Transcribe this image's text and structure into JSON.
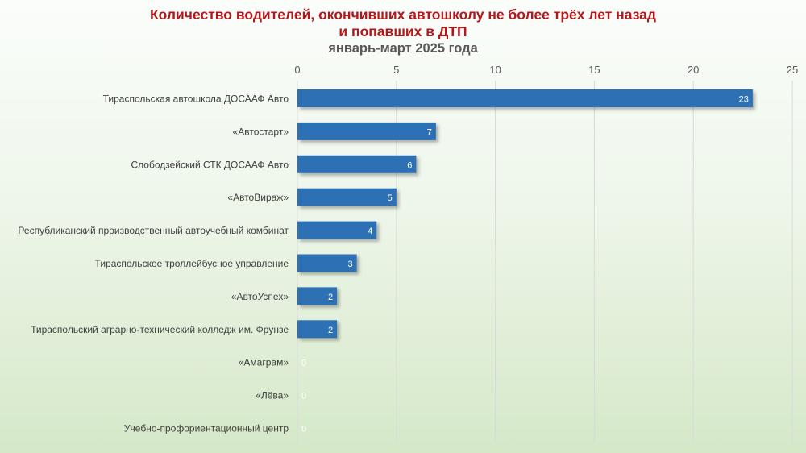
{
  "title": {
    "line1": "Количество водителей, окончивших автошколу не более трёх лет назад",
    "line2": "и попавших в ДТП",
    "subtitle": "январь-март 2025 года"
  },
  "colors": {
    "bar": "#2e6fb4",
    "title": "#b3161b",
    "subtitle": "#595959",
    "grid": "#d9d9d9",
    "zero_label": "#ffffff"
  },
  "chart_data": {
    "type": "bar",
    "orientation": "horizontal",
    "categories": [
      "Тираспольская автошкола ДОСААФ Авто",
      "«Автостарт»",
      "Слободзейский СТК ДОСААФ Авто",
      "«АвтоВираж»",
      "Республиканский производственный автоучебный комбинат",
      "Тираспольское троллейбусное управление",
      "«АвтоУспех»",
      "Тираспольский аграрно-технический колледж им. Фрунзе",
      "«Амаграм»",
      "«Лёва»",
      "Учебно-профориентационный центр"
    ],
    "values": [
      23,
      7,
      6,
      5,
      4,
      3,
      2,
      2,
      0,
      0,
      0
    ],
    "xlim": [
      0,
      25
    ],
    "xticks": [
      0,
      5,
      10,
      15,
      20,
      25
    ],
    "x_axis_position": "top",
    "grid": true,
    "data_labels": true,
    "legend": "none"
  }
}
